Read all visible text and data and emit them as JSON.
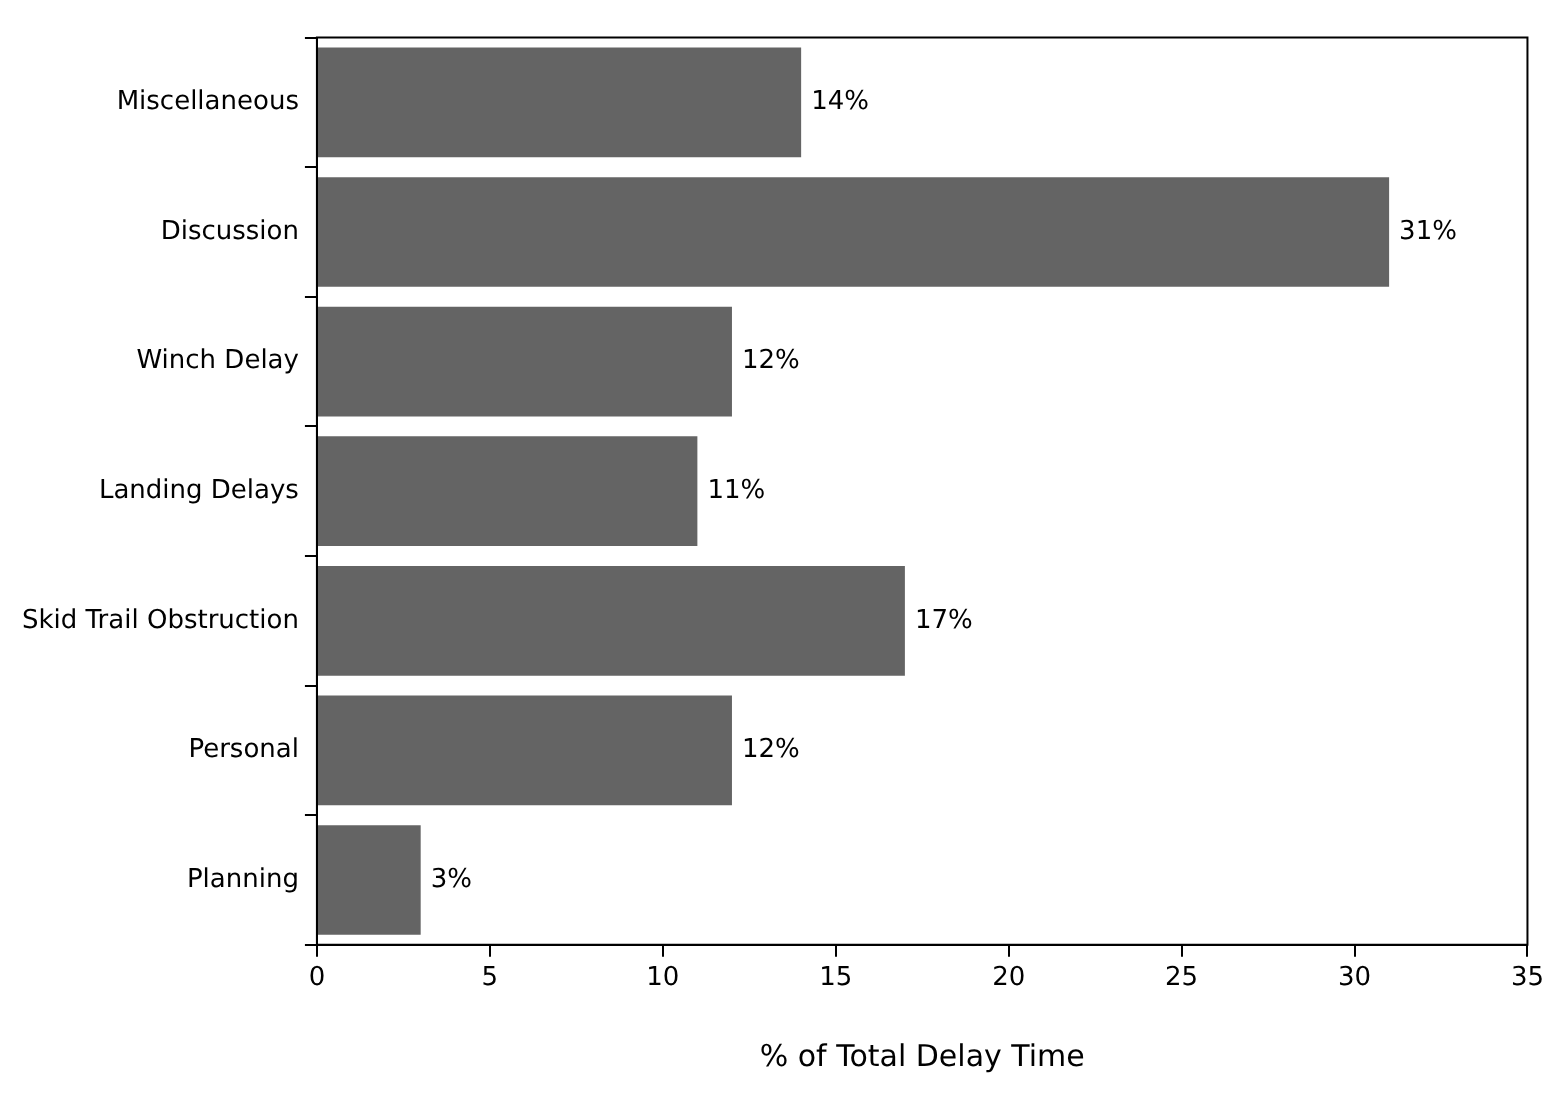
{
  "chart_data": {
    "type": "bar",
    "orientation": "horizontal",
    "xlabel": "% of Total Delay Time",
    "categories": [
      "Miscellaneous",
      "Discussion",
      "Winch Delay",
      "Landing Delays",
      "Skid Trail Obstruction",
      "Personal",
      "Planning"
    ],
    "values": [
      14,
      31,
      12,
      11,
      17,
      12,
      3
    ],
    "value_labels": [
      "14%",
      "31%",
      "12%",
      "11%",
      "17%",
      "12%",
      "3%"
    ],
    "color": "#646464",
    "xlim": [
      0,
      35
    ],
    "xticks": [
      0,
      5,
      10,
      15,
      20,
      25,
      30,
      35
    ],
    "grid": false
  }
}
